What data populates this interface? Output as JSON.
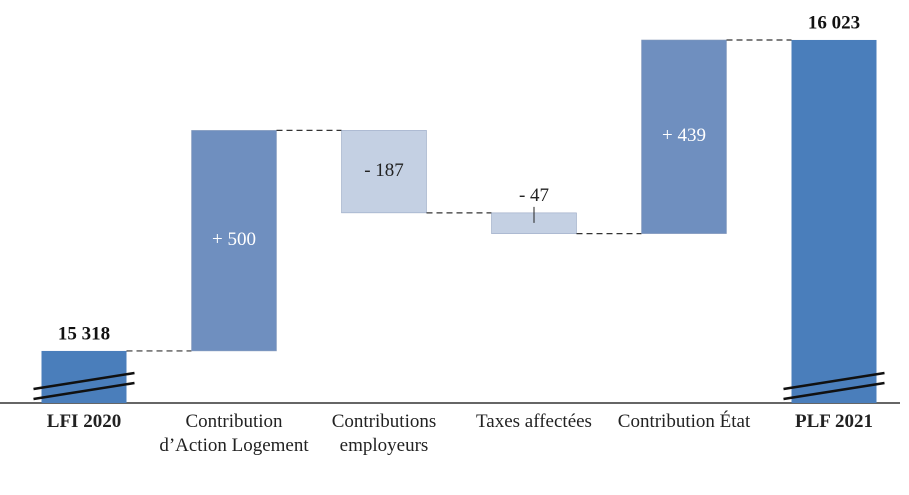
{
  "chart_data": {
    "type": "waterfall",
    "categories": [
      "LFI 2020",
      "Contribution d’Action Logement",
      "Contributions employeurs",
      "Taxes affectées",
      "Contribution État",
      "PLF 2021"
    ],
    "measure": [
      "absolute",
      "relative",
      "relative",
      "relative",
      "relative",
      "absolute"
    ],
    "values": [
      15318,
      500,
      -187,
      -47,
      439,
      16023
    ],
    "value_labels": [
      "15 318",
      "+ 500",
      "- 187",
      "- 47",
      "+ 439",
      "16 023"
    ],
    "colors": {
      "absolute": "#4a7ebb",
      "increase": "#6f8fbf",
      "decrease": "#c4d0e3"
    },
    "ylim": [
      15200,
      16100
    ],
    "axis_break": true
  }
}
